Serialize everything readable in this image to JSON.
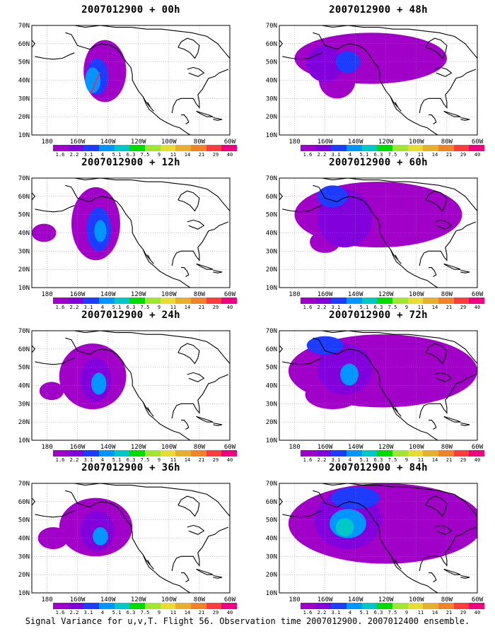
{
  "panels": [
    {
      "title": "2007012900 + 00h",
      "col": 0,
      "row": 0,
      "level": 0
    },
    {
      "title": "2007012900 + 12h",
      "col": 0,
      "row": 1,
      "level": 1
    },
    {
      "title": "2007012900 + 24h",
      "col": 0,
      "row": 2,
      "level": 2
    },
    {
      "title": "2007012900 + 36h",
      "col": 0,
      "row": 3,
      "level": 3
    },
    {
      "title": "2007012900 + 48h",
      "col": 1,
      "row": 0,
      "level": 4
    },
    {
      "title": "2007012900 + 60h",
      "col": 1,
      "row": 1,
      "level": 5
    },
    {
      "title": "2007012900 + 72h",
      "col": 1,
      "row": 2,
      "level": 6
    },
    {
      "title": "2007012900 + 84h",
      "col": 1,
      "row": 3,
      "level": 7
    }
  ],
  "y_ticks": [
    "70N",
    "60N",
    "50N",
    "40N",
    "30N",
    "20N",
    "10N"
  ],
  "x_ticks": [
    "180",
    "160W",
    "140W",
    "120W",
    "100W",
    "80W",
    "60W"
  ],
  "legend": {
    "labels": [
      "1.6",
      "2.2",
      "3.1",
      "4",
      "5.1",
      "6.3",
      "7.5",
      "9",
      "11",
      "14",
      "21",
      "29",
      "40"
    ],
    "colors": [
      "#a000c8",
      "#8200dc",
      "#1e3cff",
      "#0096ff",
      "#00c8c8",
      "#00dc00",
      "#a0e632",
      "#e6dc32",
      "#e6af2d",
      "#f08228",
      "#fa3c3c",
      "#f00082"
    ]
  },
  "footer": "Signal Variance for u,v,T. Flight 56. Observation time 2007012900. 2007012400 ensemble."
}
